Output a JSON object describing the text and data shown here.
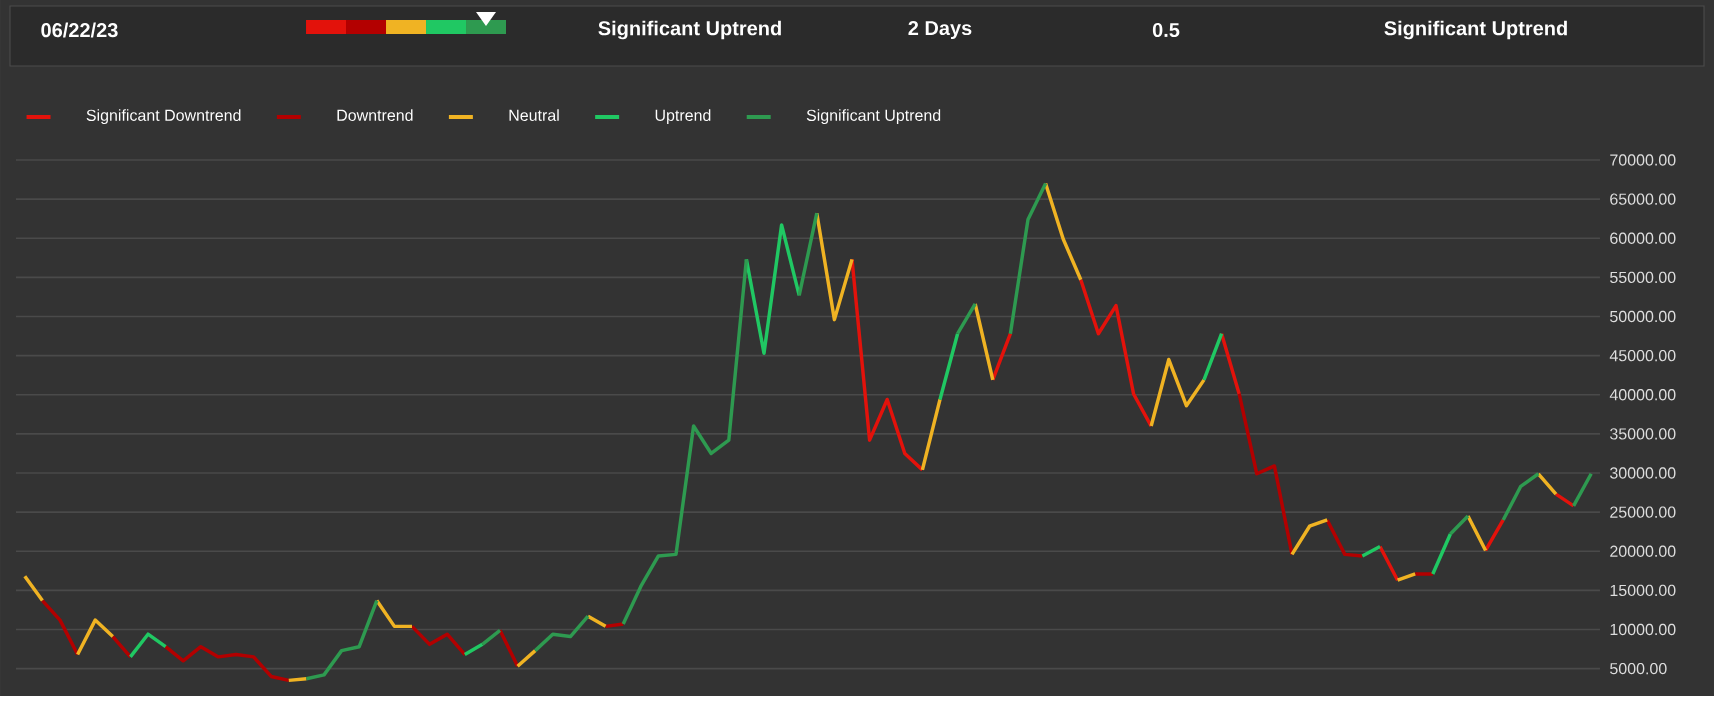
{
  "chart_data": {
    "type": "line",
    "annotations": [
      "06/22/23",
      "Significant Uptrend",
      "2 Days",
      "0.5",
      "Significant Uptrend"
    ],
    "categories": [
      null,
      null,
      null,
      null,
      null,
      null,
      null,
      null,
      null,
      null,
      null,
      null,
      null,
      null,
      null,
      null,
      null,
      null,
      null,
      null,
      null,
      null,
      null,
      null,
      null,
      null,
      null,
      null,
      null,
      null,
      null,
      null,
      null,
      null,
      null,
      null,
      null,
      null,
      null,
      null,
      null,
      null,
      null,
      null,
      null,
      null,
      null,
      null,
      null,
      null,
      null,
      null,
      null,
      null,
      null,
      null,
      null,
      null,
      null,
      null,
      null,
      null,
      null,
      null,
      null,
      null,
      null,
      null,
      null,
      null,
      null,
      null,
      null,
      null,
      null,
      null,
      null,
      null,
      null,
      null,
      null,
      null,
      null,
      null,
      null,
      null,
      null,
      null,
      null,
      null
    ],
    "series": [
      {
        "name": "Significant Downtrend",
        "color": "#e3120b",
        "values": [
          null,
          null,
          null,
          null,
          null,
          null,
          null,
          null,
          null,
          null,
          null,
          null,
          null,
          null,
          null,
          null,
          null,
          null,
          null,
          null,
          null,
          null,
          null,
          null,
          null,
          null,
          null,
          null,
          null,
          null,
          null,
          null,
          null,
          null,
          null,
          null,
          null,
          null,
          null,
          null,
          null,
          null,
          null,
          null,
          null,
          null,
          null,
          57300,
          34200,
          39400,
          32500,
          30400,
          null,
          null,
          null,
          41900,
          47800,
          null,
          null,
          null,
          54700,
          47800,
          51400,
          40100,
          36000,
          null,
          null,
          null,
          47800,
          40100,
          null,
          null,
          null,
          null,
          null,
          null,
          null,
          20600,
          16300,
          null,
          null,
          null,
          null,
          20100,
          24000,
          null,
          null,
          27300,
          25800,
          null
        ]
      },
      {
        "name": "Downtrend",
        "color": "#b30000",
        "values": [
          null,
          13700,
          11200,
          6800,
          null,
          9100,
          6500,
          null,
          7800,
          6000,
          7800,
          6500,
          6800,
          6500,
          4000,
          3500,
          null,
          null,
          null,
          null,
          null,
          null,
          10400,
          8100,
          9400,
          6800,
          null,
          9900,
          5300,
          null,
          null,
          null,
          null,
          10400,
          10700,
          null,
          null,
          null,
          null,
          null,
          null,
          null,
          null,
          null,
          null,
          null,
          null,
          null,
          null,
          null,
          null,
          null,
          null,
          null,
          null,
          null,
          null,
          null,
          null,
          null,
          null,
          null,
          null,
          null,
          null,
          null,
          null,
          null,
          null,
          40100,
          29900,
          30900,
          19600,
          null,
          24000,
          19600,
          19400,
          null,
          null,
          17100,
          17100,
          null,
          null,
          null,
          null,
          null,
          null,
          null,
          null,
          null
        ]
      },
      {
        "name": "Neutral",
        "color": "#f0b323",
        "values": [
          16800,
          13700,
          null,
          6800,
          11200,
          9100,
          null,
          null,
          null,
          null,
          null,
          null,
          null,
          null,
          null,
          3500,
          3700,
          null,
          null,
          null,
          13700,
          10400,
          10400,
          null,
          null,
          null,
          null,
          null,
          5300,
          7300,
          null,
          null,
          11700,
          10400,
          null,
          null,
          null,
          null,
          null,
          null,
          null,
          null,
          null,
          null,
          null,
          63200,
          49600,
          57300,
          null,
          null,
          null,
          30400,
          39400,
          null,
          51600,
          41900,
          null,
          null,
          67000,
          59900,
          54700,
          null,
          null,
          null,
          36000,
          44500,
          38600,
          41900,
          null,
          null,
          null,
          null,
          19600,
          23200,
          24000,
          null,
          null,
          null,
          16300,
          17100,
          null,
          null,
          24500,
          20100,
          null,
          null,
          29900,
          27300,
          null,
          null
        ]
      },
      {
        "name": "Uptrend",
        "color": "#20c863",
        "values": [
          null,
          null,
          null,
          null,
          null,
          null,
          6500,
          9400,
          7800,
          null,
          null,
          null,
          null,
          null,
          null,
          null,
          null,
          null,
          null,
          null,
          null,
          null,
          null,
          null,
          null,
          6800,
          8100,
          null,
          null,
          null,
          null,
          null,
          null,
          null,
          null,
          null,
          null,
          null,
          null,
          null,
          null,
          57300,
          45300,
          61700,
          52700,
          null,
          null,
          null,
          null,
          null,
          null,
          null,
          39400,
          47800,
          null,
          null,
          null,
          null,
          null,
          null,
          null,
          null,
          null,
          null,
          null,
          null,
          null,
          41900,
          47800,
          null,
          null,
          null,
          null,
          null,
          null,
          null,
          19400,
          20600,
          null,
          null,
          17100,
          22200,
          null,
          null,
          null,
          null,
          null,
          null,
          null,
          null
        ]
      },
      {
        "name": "Significant Uptrend",
        "color": "#2e9a50",
        "values": [
          null,
          null,
          null,
          null,
          null,
          null,
          null,
          null,
          null,
          null,
          null,
          null,
          null,
          null,
          null,
          null,
          3700,
          4200,
          7300,
          7800,
          13700,
          null,
          null,
          null,
          null,
          null,
          8100,
          9900,
          null,
          7300,
          9400,
          9100,
          11700,
          null,
          10700,
          15500,
          19400,
          19600,
          36000,
          32500,
          34200,
          57300,
          null,
          null,
          52700,
          63200,
          null,
          null,
          null,
          null,
          null,
          null,
          null,
          47800,
          51600,
          null,
          47800,
          62400,
          67000,
          null,
          null,
          null,
          null,
          null,
          null,
          null,
          null,
          null,
          null,
          null,
          null,
          null,
          null,
          null,
          null,
          null,
          null,
          null,
          null,
          null,
          null,
          22200,
          24500,
          null,
          24000,
          28300,
          29900,
          null,
          25800,
          29900
        ]
      }
    ],
    "ylim": [
      1500,
      70000
    ],
    "yticks": [
      {
        "value": 5000,
        "label": "5000.00"
      },
      {
        "value": 10000,
        "label": "10000.00"
      },
      {
        "value": 15000,
        "label": "15000.00"
      },
      {
        "value": 20000,
        "label": "20000.00"
      },
      {
        "value": 25000,
        "label": "25000.00"
      },
      {
        "value": 30000,
        "label": "30000.00"
      },
      {
        "value": 35000,
        "label": "35000.00"
      },
      {
        "value": 40000,
        "label": "40000.00"
      },
      {
        "value": 45000,
        "label": "45000.00"
      },
      {
        "value": 50000,
        "label": "50000.00"
      },
      {
        "value": 55000,
        "label": "55000.00"
      },
      {
        "value": 60000,
        "label": "60000.00"
      },
      {
        "value": 65000,
        "label": "65000.00"
      },
      {
        "value": 70000,
        "label": "70000.00"
      }
    ],
    "grid": "y",
    "legend": "top left",
    "marker": "none",
    "line_style": "solid"
  }
}
